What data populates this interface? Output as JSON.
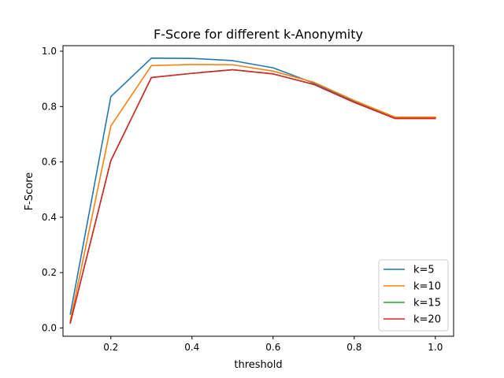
{
  "chart_data": {
    "type": "line",
    "title": "F-Score for different k-Anonymity",
    "xlabel": "threshold",
    "ylabel": "F-Score",
    "xlim": [
      0.082,
      1.045
    ],
    "ylim": [
      -0.03,
      1.02
    ],
    "xticks": [
      "0.2",
      "0.4",
      "0.6",
      "0.8",
      "1.0"
    ],
    "yticks": [
      "0.0",
      "0.2",
      "0.4",
      "0.6",
      "0.8",
      "1.0"
    ],
    "grid": false,
    "legend_position": "lower-right",
    "x": [
      0.1,
      0.2,
      0.3,
      0.4,
      0.5,
      0.6,
      0.7,
      0.8,
      0.9,
      1.0
    ],
    "series": [
      {
        "name": "k=5",
        "color": "#1f77b4",
        "values": [
          0.05,
          0.836,
          0.975,
          0.974,
          0.966,
          0.94,
          0.885,
          0.818,
          0.76,
          0.76
        ]
      },
      {
        "name": "k=10",
        "color": "#ff7f0e",
        "values": [
          0.025,
          0.73,
          0.948,
          0.952,
          0.951,
          0.928,
          0.888,
          0.822,
          0.762,
          0.762
        ]
      },
      {
        "name": "k=15",
        "color": "#2ca02c",
        "values": [
          0.018,
          0.605,
          0.905,
          0.92,
          0.933,
          0.918,
          0.88,
          0.815,
          0.757,
          0.757
        ]
      },
      {
        "name": "k=20",
        "color": "#d62728",
        "values": [
          0.018,
          0.605,
          0.905,
          0.92,
          0.933,
          0.918,
          0.88,
          0.815,
          0.757,
          0.757
        ]
      }
    ]
  }
}
